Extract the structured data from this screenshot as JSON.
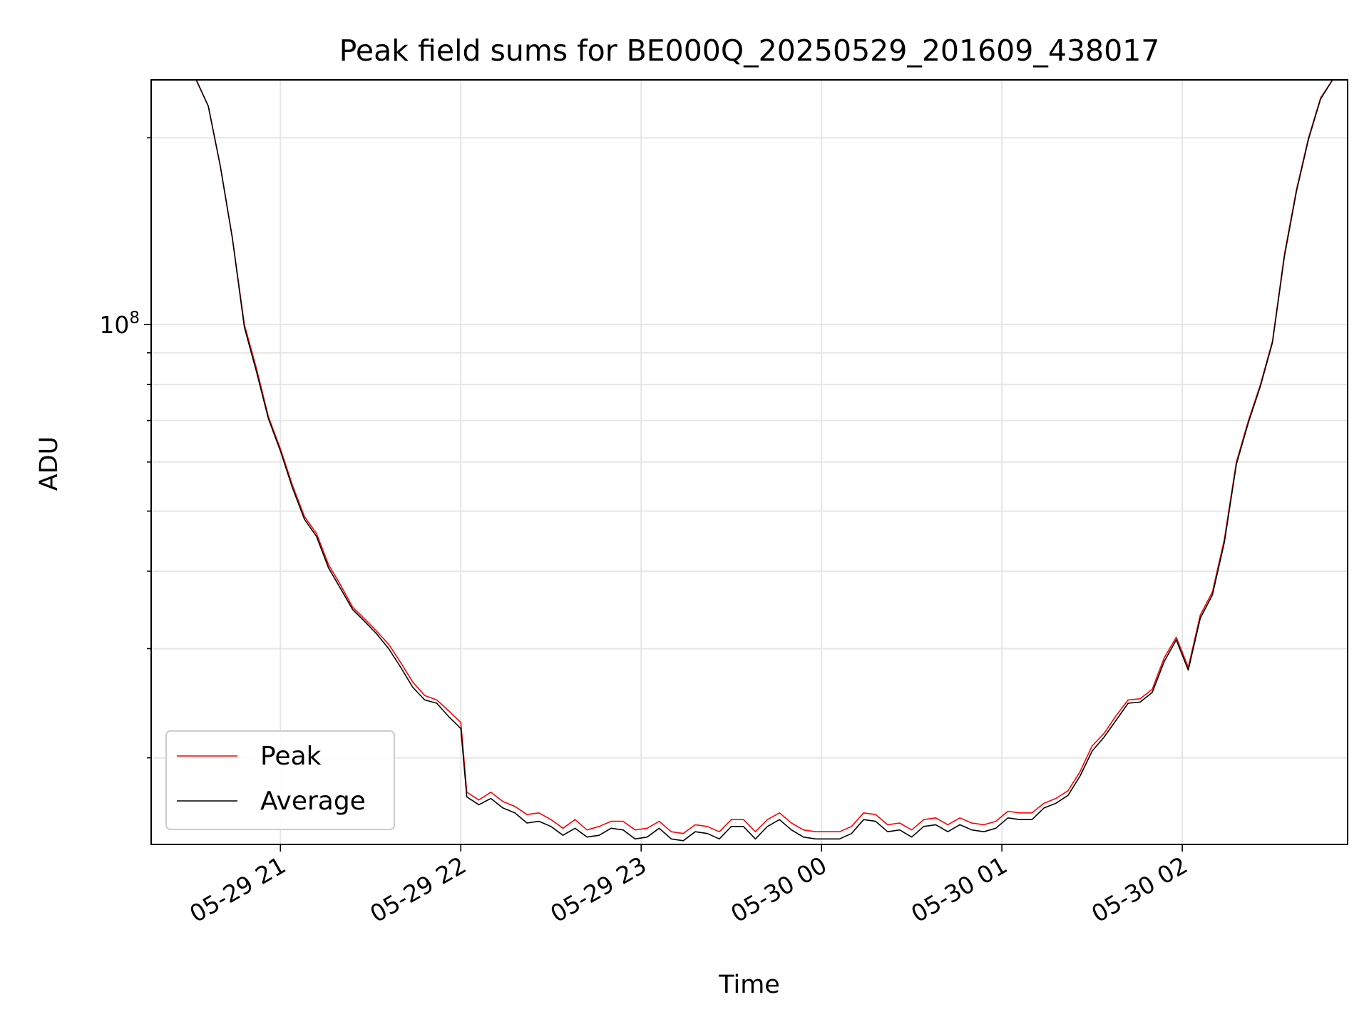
{
  "chart_data": {
    "type": "line",
    "title": "Peak field sums for BE000Q_20250529_201609_438017",
    "xlabel": "Time",
    "ylabel": "ADU",
    "y_scale": "log",
    "ylim": [
      14500000,
      248000000
    ],
    "xlim": [
      "2025-05-29 20:17",
      "2025-05-30 02:55"
    ],
    "x_ticks": [
      {
        "value": "2025-05-29 21:00",
        "label": "05-29 21"
      },
      {
        "value": "2025-05-29 22:00",
        "label": "05-29 22"
      },
      {
        "value": "2025-05-29 23:00",
        "label": "05-29 23"
      },
      {
        "value": "2025-05-30 00:00",
        "label": "05-30 00"
      },
      {
        "value": "2025-05-30 01:00",
        "label": "05-30 01"
      },
      {
        "value": "2025-05-30 02:00",
        "label": "05-30 02"
      }
    ],
    "y_ticks": [
      {
        "value": 100000000,
        "label": "10^8"
      }
    ],
    "grid": true,
    "legend": "lower-left",
    "series": [
      {
        "name": "Peak",
        "color": "#ff0000",
        "x": [
          "2025-05-29 20:32",
          "2025-05-29 20:36",
          "2025-05-29 20:40",
          "2025-05-29 20:44",
          "2025-05-29 20:48",
          "2025-05-29 20:52",
          "2025-05-29 20:56",
          "2025-05-29 21:00",
          "2025-05-29 21:04",
          "2025-05-29 21:08",
          "2025-05-29 21:12",
          "2025-05-29 21:16",
          "2025-05-29 21:20",
          "2025-05-29 21:24",
          "2025-05-29 21:28",
          "2025-05-29 21:32",
          "2025-05-29 21:36",
          "2025-05-29 21:40",
          "2025-05-29 21:44",
          "2025-05-29 21:48",
          "2025-05-29 21:52",
          "2025-05-29 21:56",
          "2025-05-29 22:00",
          "2025-05-29 22:02",
          "2025-05-29 22:06",
          "2025-05-29 22:10",
          "2025-05-29 22:14",
          "2025-05-29 22:18",
          "2025-05-29 22:22",
          "2025-05-29 22:26",
          "2025-05-29 22:30",
          "2025-05-29 22:34",
          "2025-05-29 22:38",
          "2025-05-29 22:42",
          "2025-05-29 22:46",
          "2025-05-29 22:50",
          "2025-05-29 22:54",
          "2025-05-29 22:58",
          "2025-05-29 23:02",
          "2025-05-29 23:06",
          "2025-05-29 23:10",
          "2025-05-29 23:14",
          "2025-05-29 23:18",
          "2025-05-29 23:22",
          "2025-05-29 23:26",
          "2025-05-29 23:30",
          "2025-05-29 23:34",
          "2025-05-29 23:38",
          "2025-05-29 23:42",
          "2025-05-29 23:46",
          "2025-05-29 23:50",
          "2025-05-29 23:54",
          "2025-05-29 23:58",
          "2025-05-30 00:02",
          "2025-05-30 00:06",
          "2025-05-30 00:10",
          "2025-05-30 00:14",
          "2025-05-30 00:18",
          "2025-05-30 00:22",
          "2025-05-30 00:26",
          "2025-05-30 00:30",
          "2025-05-30 00:34",
          "2025-05-30 00:38",
          "2025-05-30 00:42",
          "2025-05-30 00:46",
          "2025-05-30 00:50",
          "2025-05-30 00:54",
          "2025-05-30 00:58",
          "2025-05-30 01:02",
          "2025-05-30 01:06",
          "2025-05-30 01:10",
          "2025-05-30 01:14",
          "2025-05-30 01:18",
          "2025-05-30 01:22",
          "2025-05-30 01:26",
          "2025-05-30 01:30",
          "2025-05-30 01:34",
          "2025-05-30 01:38",
          "2025-05-30 01:42",
          "2025-05-30 01:46",
          "2025-05-30 01:50",
          "2025-05-30 01:54",
          "2025-05-30 01:58",
          "2025-05-30 02:02",
          "2025-05-30 02:06",
          "2025-05-30 02:10",
          "2025-05-30 02:14",
          "2025-05-30 02:18",
          "2025-05-30 02:22",
          "2025-05-30 02:26",
          "2025-05-30 02:30",
          "2025-05-30 02:34",
          "2025-05-30 02:38",
          "2025-05-30 02:42",
          "2025-05-30 02:46",
          "2025-05-30 02:50"
        ],
        "values": [
          248000000,
          225000000,
          180000000,
          138000000,
          100000000,
          85000000,
          71000000,
          63000000,
          55000000,
          49000000,
          46000000,
          41000000,
          38000000,
          35000000,
          33500000,
          32000000,
          30500000,
          28500000,
          26500000,
          25200000,
          24800000,
          23800000,
          22800000,
          17600000,
          17100000,
          17600000,
          17000000,
          16700000,
          16200000,
          16300000,
          15900000,
          15400000,
          15900000,
          15300000,
          15500000,
          15800000,
          15800000,
          15300000,
          15400000,
          15800000,
          15200000,
          15100000,
          15600000,
          15500000,
          15200000,
          15900000,
          15900000,
          15200000,
          15900000,
          16300000,
          15700000,
          15300000,
          15200000,
          15200000,
          15200000,
          15500000,
          16300000,
          16200000,
          15600000,
          15700000,
          15300000,
          15900000,
          16000000,
          15600000,
          16000000,
          15700000,
          15600000,
          15800000,
          16400000,
          16300000,
          16300000,
          16900000,
          17200000,
          17700000,
          19000000,
          20900000,
          21900000,
          23400000,
          24800000,
          24900000,
          25800000,
          29000000,
          31300000,
          28000000,
          34000000,
          37000000,
          45000000,
          60000000,
          70000000,
          80000000,
          94000000,
          130000000,
          165000000,
          200000000,
          232000000,
          248000000
        ]
      },
      {
        "name": "Average",
        "color": "#000000",
        "x": [
          "2025-05-29 20:32",
          "2025-05-29 20:36",
          "2025-05-29 20:40",
          "2025-05-29 20:44",
          "2025-05-29 20:48",
          "2025-05-29 20:52",
          "2025-05-29 20:56",
          "2025-05-29 21:00",
          "2025-05-29 21:04",
          "2025-05-29 21:08",
          "2025-05-29 21:12",
          "2025-05-29 21:16",
          "2025-05-29 21:20",
          "2025-05-29 21:24",
          "2025-05-29 21:28",
          "2025-05-29 21:32",
          "2025-05-29 21:36",
          "2025-05-29 21:40",
          "2025-05-29 21:44",
          "2025-05-29 21:48",
          "2025-05-29 21:52",
          "2025-05-29 21:56",
          "2025-05-29 22:00",
          "2025-05-29 22:02",
          "2025-05-29 22:06",
          "2025-05-29 22:10",
          "2025-05-29 22:14",
          "2025-05-29 22:18",
          "2025-05-29 22:22",
          "2025-05-29 22:26",
          "2025-05-29 22:30",
          "2025-05-29 22:34",
          "2025-05-29 22:38",
          "2025-05-29 22:42",
          "2025-05-29 22:46",
          "2025-05-29 22:50",
          "2025-05-29 22:54",
          "2025-05-29 22:58",
          "2025-05-29 23:02",
          "2025-05-29 23:06",
          "2025-05-29 23:10",
          "2025-05-29 23:14",
          "2025-05-29 23:18",
          "2025-05-29 23:22",
          "2025-05-29 23:26",
          "2025-05-29 23:30",
          "2025-05-29 23:34",
          "2025-05-29 23:38",
          "2025-05-29 23:42",
          "2025-05-29 23:46",
          "2025-05-29 23:50",
          "2025-05-29 23:54",
          "2025-05-29 23:58",
          "2025-05-30 00:02",
          "2025-05-30 00:06",
          "2025-05-30 00:10",
          "2025-05-30 00:14",
          "2025-05-30 00:18",
          "2025-05-30 00:22",
          "2025-05-30 00:26",
          "2025-05-30 00:30",
          "2025-05-30 00:34",
          "2025-05-30 00:38",
          "2025-05-30 00:42",
          "2025-05-30 00:46",
          "2025-05-30 00:50",
          "2025-05-30 00:54",
          "2025-05-30 00:58",
          "2025-05-30 01:02",
          "2025-05-30 01:06",
          "2025-05-30 01:10",
          "2025-05-30 01:14",
          "2025-05-30 01:18",
          "2025-05-30 01:22",
          "2025-05-30 01:26",
          "2025-05-30 01:30",
          "2025-05-30 01:34",
          "2025-05-30 01:38",
          "2025-05-30 01:42",
          "2025-05-30 01:46",
          "2025-05-30 01:50",
          "2025-05-30 01:54",
          "2025-05-30 01:58",
          "2025-05-30 02:02",
          "2025-05-30 02:06",
          "2025-05-30 02:10",
          "2025-05-30 02:14",
          "2025-05-30 02:18",
          "2025-05-30 02:22",
          "2025-05-30 02:26",
          "2025-05-30 02:30",
          "2025-05-30 02:34",
          "2025-05-30 02:38",
          "2025-05-30 02:42",
          "2025-05-30 02:46",
          "2025-05-30 02:50"
        ],
        "values": [
          248000000,
          225000000,
          180000000,
          138000000,
          99000000,
          84000000,
          70500000,
          62500000,
          54500000,
          48500000,
          45500000,
          40500000,
          37500000,
          34700000,
          33200000,
          31700000,
          30000000,
          28000000,
          26000000,
          24800000,
          24500000,
          23300000,
          22300000,
          17300000,
          16800000,
          17200000,
          16600000,
          16300000,
          15700000,
          15800000,
          15500000,
          15000000,
          15400000,
          14900000,
          15000000,
          15400000,
          15300000,
          14800000,
          14900000,
          15400000,
          14800000,
          14700000,
          15200000,
          15100000,
          14800000,
          15500000,
          15500000,
          14800000,
          15500000,
          15900000,
          15300000,
          14900000,
          14800000,
          14800000,
          14800000,
          15100000,
          15900000,
          15800000,
          15200000,
          15300000,
          14900000,
          15500000,
          15600000,
          15200000,
          15600000,
          15300000,
          15200000,
          15400000,
          16000000,
          15900000,
          15900000,
          16600000,
          16900000,
          17400000,
          18700000,
          20500000,
          21600000,
          23000000,
          24500000,
          24600000,
          25500000,
          28600000,
          31000000,
          27700000,
          33600000,
          36600000,
          44500000,
          59500000,
          69500000,
          79500000,
          93500000,
          129000000,
          164000000,
          199000000,
          231000000,
          248000000
        ]
      }
    ]
  }
}
